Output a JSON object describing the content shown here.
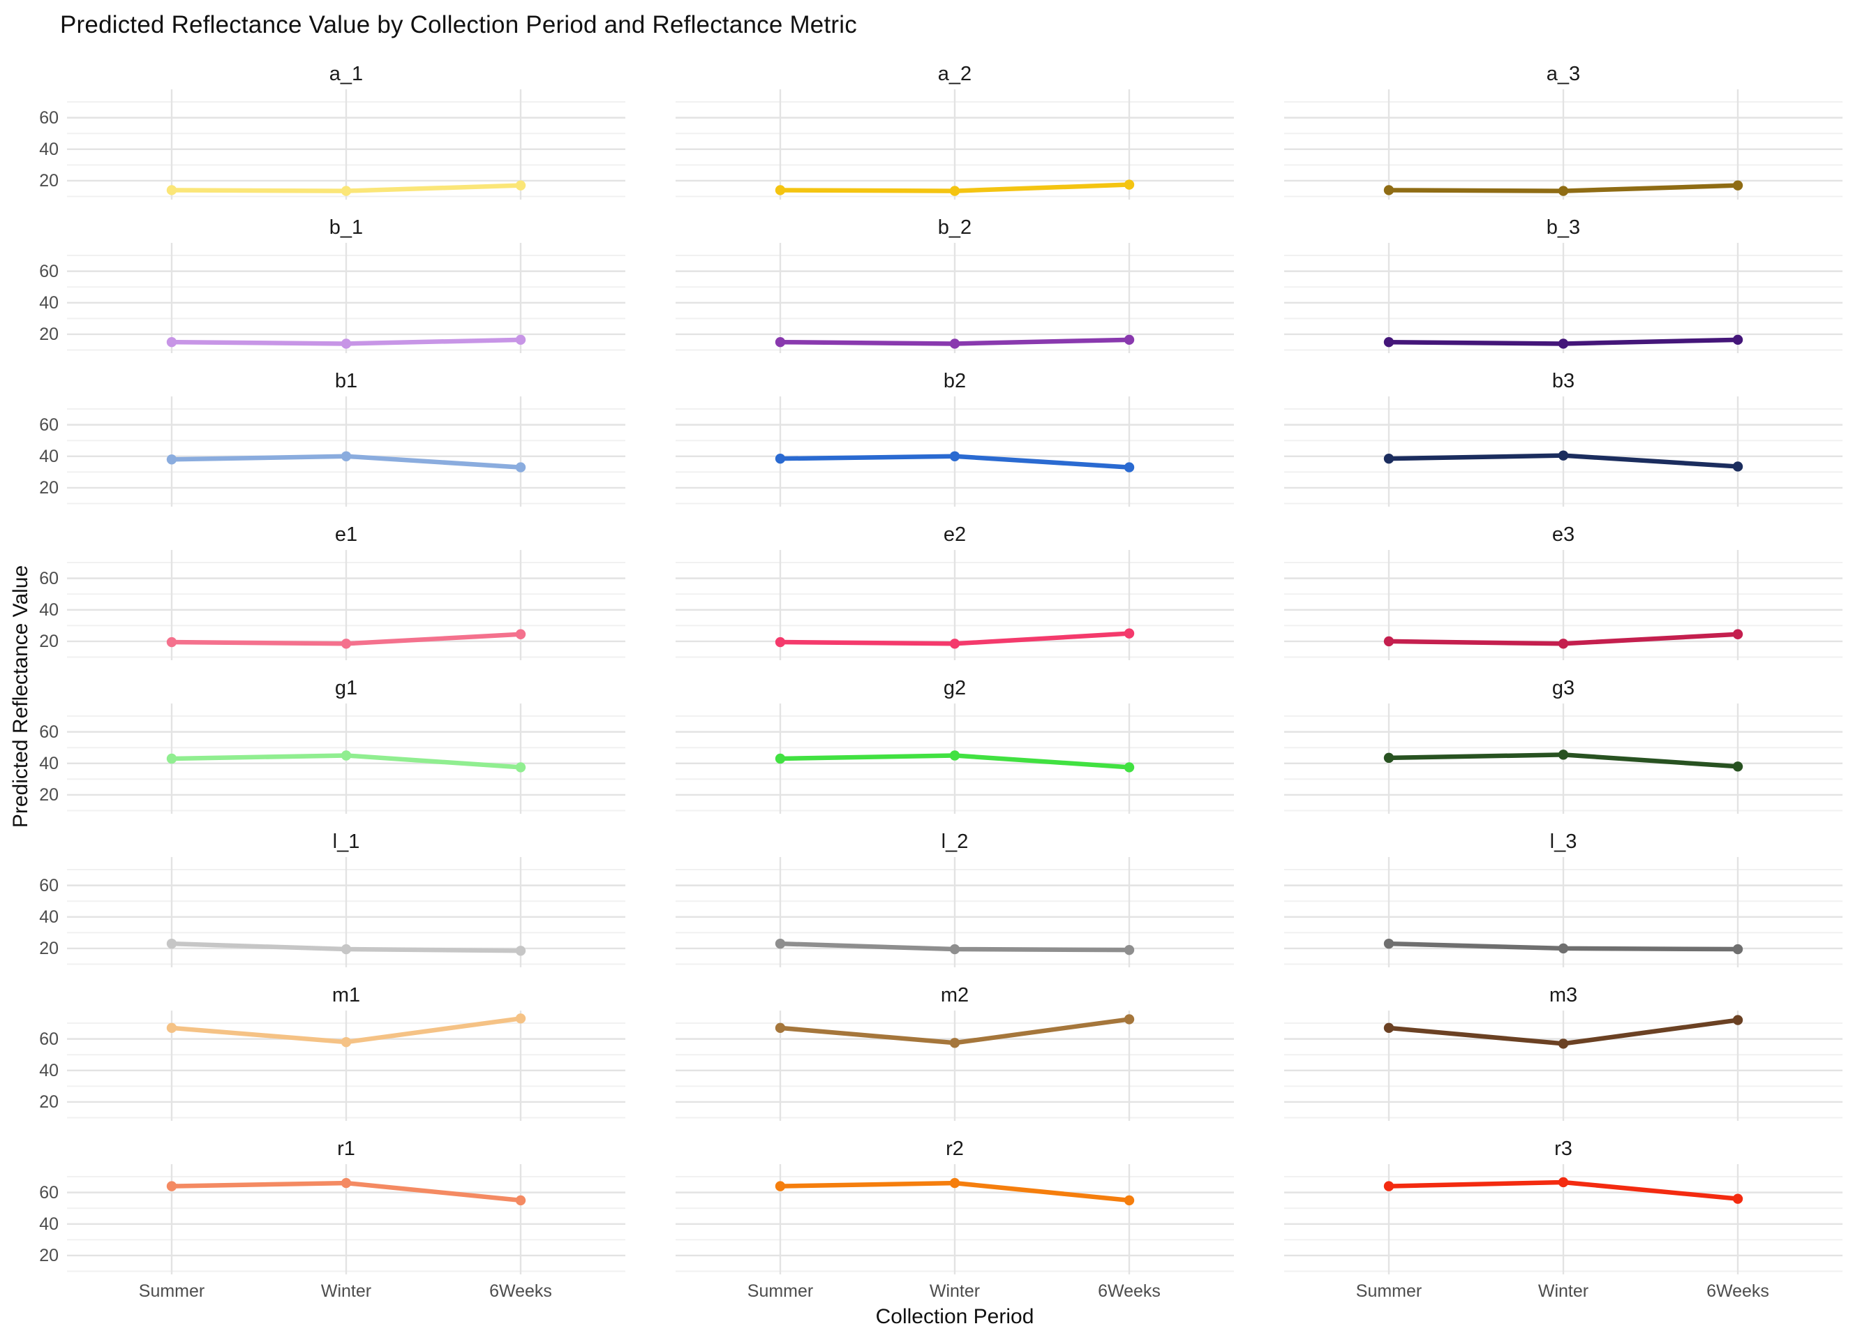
{
  "title": "Predicted Reflectance Value by Collection Period and Reflectance Metric",
  "x_axis": {
    "label": "Collection Period",
    "categories": [
      "Summer",
      "Winter",
      "6Weeks"
    ]
  },
  "y_axis": {
    "label": "Predicted Reflectance Value",
    "ticks": [
      20,
      40,
      60
    ],
    "minor_ticks": [
      10,
      30,
      50,
      70
    ],
    "range": [
      8,
      78
    ]
  },
  "colors": {
    "background": "#ffffff",
    "grid_major": "#e3e3e3",
    "grid_minor": "#f1f1f1",
    "tick_text": "#4d4d4d",
    "title_text": "#111111"
  },
  "chart_data": {
    "type": "line",
    "title": "Predicted Reflectance Value by Collection Period and Reflectance Metric",
    "xlabel": "Collection Period",
    "ylabel": "Predicted Reflectance Value",
    "categories": [
      "Summer",
      "Winter",
      "6Weeks"
    ],
    "ylim": [
      8,
      78
    ],
    "grid": true,
    "facet_grid": {
      "rows": 8,
      "cols": 3
    },
    "facets": [
      {
        "label": "a_1",
        "color": "#FBE678",
        "values": [
          14,
          13.5,
          17
        ]
      },
      {
        "label": "a_2",
        "color": "#F4C411",
        "values": [
          14,
          13.5,
          17.5
        ]
      },
      {
        "label": "a_3",
        "color": "#8F6C14",
        "values": [
          14,
          13.5,
          17
        ]
      },
      {
        "label": "b_1",
        "color": "#C795E6",
        "values": [
          15,
          14,
          16.5
        ]
      },
      {
        "label": "b_2",
        "color": "#8939AE",
        "values": [
          15,
          14,
          16.5
        ]
      },
      {
        "label": "b_3",
        "color": "#441679",
        "values": [
          15,
          14,
          16.5
        ]
      },
      {
        "label": "b1",
        "color": "#8AACDE",
        "values": [
          38,
          40,
          33
        ]
      },
      {
        "label": "b2",
        "color": "#2A6AD1",
        "values": [
          38.5,
          40,
          33
        ]
      },
      {
        "label": "b3",
        "color": "#1B2D5E",
        "values": [
          38.5,
          40.5,
          33.5
        ]
      },
      {
        "label": "e1",
        "color": "#F4718D",
        "values": [
          19.5,
          18.5,
          24.5
        ]
      },
      {
        "label": "e2",
        "color": "#F43A6C",
        "values": [
          19.5,
          18.5,
          25
        ]
      },
      {
        "label": "e3",
        "color": "#C41F4E",
        "values": [
          20,
          18.5,
          24.5
        ]
      },
      {
        "label": "g1",
        "color": "#90EE90",
        "values": [
          43,
          45,
          37.5
        ]
      },
      {
        "label": "g2",
        "color": "#41E141",
        "values": [
          43,
          45,
          37.5
        ]
      },
      {
        "label": "g3",
        "color": "#285221",
        "values": [
          43.5,
          45.5,
          38
        ]
      },
      {
        "label": "l_1",
        "color": "#C6C6C6",
        "values": [
          23,
          19.5,
          18.5
        ]
      },
      {
        "label": "l_2",
        "color": "#8E8E8E",
        "values": [
          23,
          19.5,
          19
        ]
      },
      {
        "label": "l_3",
        "color": "#6F6F6F",
        "values": [
          23,
          20,
          19.5
        ]
      },
      {
        "label": "m1",
        "color": "#F5C285",
        "values": [
          67,
          58,
          73
        ]
      },
      {
        "label": "m2",
        "color": "#A5763B",
        "values": [
          67,
          57.5,
          72.5
        ]
      },
      {
        "label": "m3",
        "color": "#6B4123",
        "values": [
          67,
          57,
          72
        ]
      },
      {
        "label": "r1",
        "color": "#F48A62",
        "values": [
          64,
          66,
          55
        ]
      },
      {
        "label": "r2",
        "color": "#F57E0D",
        "values": [
          64,
          66,
          55
        ]
      },
      {
        "label": "r3",
        "color": "#F32B10",
        "values": [
          64,
          66.5,
          56
        ]
      }
    ]
  }
}
